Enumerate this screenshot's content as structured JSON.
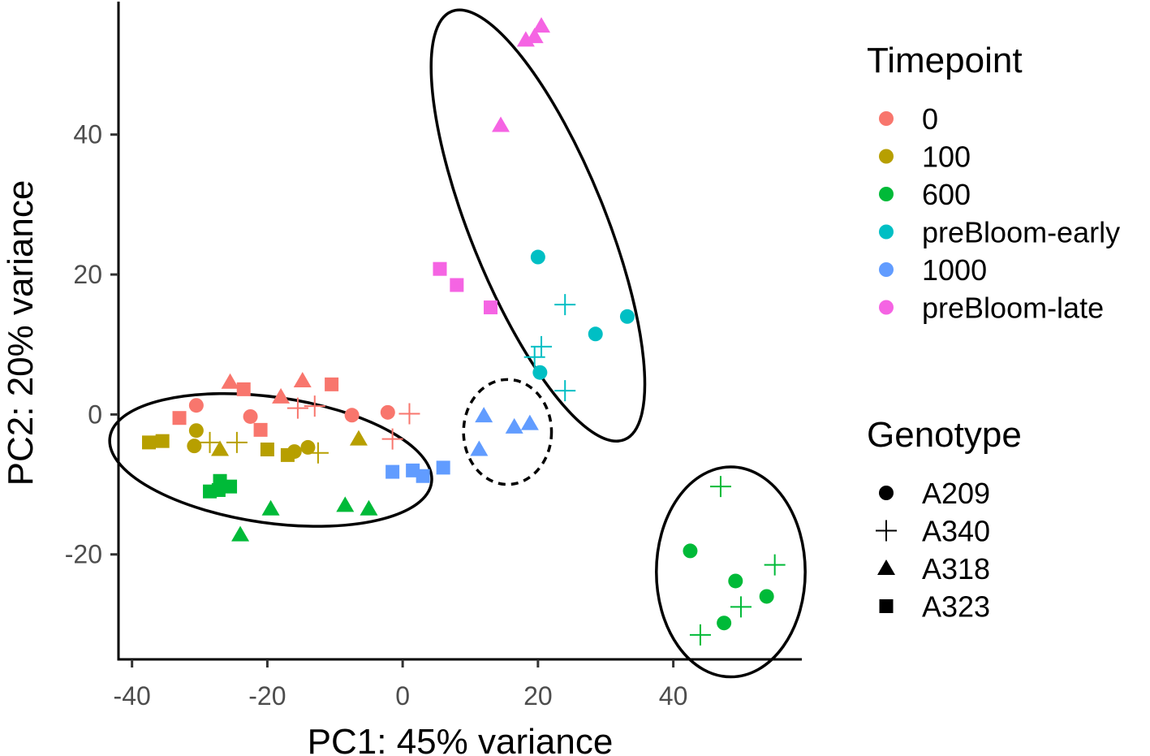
{
  "chart_data": {
    "type": "scatter",
    "title": "",
    "xlabel": "PC1: 45% variance",
    "ylabel": "PC2: 20% variance",
    "xlim": [
      -42,
      59
    ],
    "ylim": [
      -35,
      59
    ],
    "xticks": [
      -40,
      -20,
      0,
      20,
      40
    ],
    "yticks": [
      -20,
      0,
      20,
      40
    ],
    "timepoint_legend": {
      "title": "Timepoint",
      "entries": [
        {
          "label": "0",
          "color": "#F8766D"
        },
        {
          "label": "100",
          "color": "#B79F00"
        },
        {
          "label": "600",
          "color": "#00BA38"
        },
        {
          "label": "preBloom-early",
          "color": "#00BFC4"
        },
        {
          "label": "1000",
          "color": "#619CFF"
        },
        {
          "label": "preBloom-late",
          "color": "#F564E3"
        }
      ]
    },
    "genotype_legend": {
      "title": "Genotype",
      "entries": [
        {
          "label": "A209",
          "shape": "circle"
        },
        {
          "label": "A340",
          "shape": "plus"
        },
        {
          "label": "A318",
          "shape": "triangle"
        },
        {
          "label": "A323",
          "shape": "square"
        }
      ]
    },
    "points": [
      {
        "x": -30.5,
        "y": 1.3,
        "timepoint": "0",
        "genotype": "A209"
      },
      {
        "x": -22.5,
        "y": -0.3,
        "timepoint": "0",
        "genotype": "A209"
      },
      {
        "x": -7.5,
        "y": -0.1,
        "timepoint": "0",
        "genotype": "A209"
      },
      {
        "x": -2.2,
        "y": 0.3,
        "timepoint": "0",
        "genotype": "A209"
      },
      {
        "x": -15.5,
        "y": 0.9,
        "timepoint": "0",
        "genotype": "A340"
      },
      {
        "x": -13.0,
        "y": 1.2,
        "timepoint": "0",
        "genotype": "A340"
      },
      {
        "x": 1.0,
        "y": 0.1,
        "timepoint": "0",
        "genotype": "A340"
      },
      {
        "x": -1.5,
        "y": -3.5,
        "timepoint": "0",
        "genotype": "A340"
      },
      {
        "x": -25.5,
        "y": 4.6,
        "timepoint": "0",
        "genotype": "A318"
      },
      {
        "x": -18.0,
        "y": 2.5,
        "timepoint": "0",
        "genotype": "A318"
      },
      {
        "x": -14.8,
        "y": 4.8,
        "timepoint": "0",
        "genotype": "A318"
      },
      {
        "x": -33.0,
        "y": -0.5,
        "timepoint": "0",
        "genotype": "A323"
      },
      {
        "x": -23.5,
        "y": 3.6,
        "timepoint": "0",
        "genotype": "A323"
      },
      {
        "x": -10.5,
        "y": 4.3,
        "timepoint": "0",
        "genotype": "A323"
      },
      {
        "x": -21.0,
        "y": -2.2,
        "timepoint": "0",
        "genotype": "A323"
      },
      {
        "x": -30.5,
        "y": -2.3,
        "timepoint": "100",
        "genotype": "A209"
      },
      {
        "x": -30.8,
        "y": -4.5,
        "timepoint": "100",
        "genotype": "A209"
      },
      {
        "x": -16.0,
        "y": -5.3,
        "timepoint": "100",
        "genotype": "A209"
      },
      {
        "x": -14.0,
        "y": -4.7,
        "timepoint": "100",
        "genotype": "A209"
      },
      {
        "x": -28.5,
        "y": -4.0,
        "timepoint": "100",
        "genotype": "A340"
      },
      {
        "x": -24.5,
        "y": -4.0,
        "timepoint": "100",
        "genotype": "A340"
      },
      {
        "x": -12.5,
        "y": -5.5,
        "timepoint": "100",
        "genotype": "A340"
      },
      {
        "x": -27.0,
        "y": -5.0,
        "timepoint": "100",
        "genotype": "A318"
      },
      {
        "x": -6.5,
        "y": -3.5,
        "timepoint": "100",
        "genotype": "A318"
      },
      {
        "x": -37.5,
        "y": -4.0,
        "timepoint": "100",
        "genotype": "A323"
      },
      {
        "x": -35.5,
        "y": -3.8,
        "timepoint": "100",
        "genotype": "A323"
      },
      {
        "x": -20.0,
        "y": -5.0,
        "timepoint": "100",
        "genotype": "A323"
      },
      {
        "x": -17.0,
        "y": -5.8,
        "timepoint": "100",
        "genotype": "A323"
      },
      {
        "x": 42.5,
        "y": -19.5,
        "timepoint": "600",
        "genotype": "A209"
      },
      {
        "x": 49.2,
        "y": -23.8,
        "timepoint": "600",
        "genotype": "A209"
      },
      {
        "x": 47.5,
        "y": -29.8,
        "timepoint": "600",
        "genotype": "A209"
      },
      {
        "x": 53.8,
        "y": -26.0,
        "timepoint": "600",
        "genotype": "A209"
      },
      {
        "x": 47.0,
        "y": -10.3,
        "timepoint": "600",
        "genotype": "A340"
      },
      {
        "x": 55.0,
        "y": -21.5,
        "timepoint": "600",
        "genotype": "A340"
      },
      {
        "x": 50.0,
        "y": -27.5,
        "timepoint": "600",
        "genotype": "A340"
      },
      {
        "x": 44.0,
        "y": -31.5,
        "timepoint": "600",
        "genotype": "A340"
      },
      {
        "x": -24.0,
        "y": -17.2,
        "timepoint": "600",
        "genotype": "A318"
      },
      {
        "x": -19.5,
        "y": -13.5,
        "timepoint": "600",
        "genotype": "A318"
      },
      {
        "x": -8.5,
        "y": -13.0,
        "timepoint": "600",
        "genotype": "A318"
      },
      {
        "x": -5.0,
        "y": -13.5,
        "timepoint": "600",
        "genotype": "A318"
      },
      {
        "x": -27.0,
        "y": -9.5,
        "timepoint": "600",
        "genotype": "A323"
      },
      {
        "x": -25.5,
        "y": -10.3,
        "timepoint": "600",
        "genotype": "A323"
      },
      {
        "x": -28.5,
        "y": -11.0,
        "timepoint": "600",
        "genotype": "A323"
      },
      {
        "x": -27.2,
        "y": -10.8,
        "timepoint": "600",
        "genotype": "A323"
      },
      {
        "x": 20.0,
        "y": 22.5,
        "timepoint": "preBloom-early",
        "genotype": "A209"
      },
      {
        "x": 28.5,
        "y": 11.5,
        "timepoint": "preBloom-early",
        "genotype": "A209"
      },
      {
        "x": 33.2,
        "y": 14.0,
        "timepoint": "preBloom-early",
        "genotype": "A209"
      },
      {
        "x": 20.3,
        "y": 6.0,
        "timepoint": "preBloom-early",
        "genotype": "A209"
      },
      {
        "x": 24.0,
        "y": 15.7,
        "timepoint": "preBloom-early",
        "genotype": "A340"
      },
      {
        "x": 20.5,
        "y": 9.7,
        "timepoint": "preBloom-early",
        "genotype": "A340"
      },
      {
        "x": 19.5,
        "y": 8.2,
        "timepoint": "preBloom-early",
        "genotype": "A340"
      },
      {
        "x": 24.0,
        "y": 3.4,
        "timepoint": "preBloom-early",
        "genotype": "A340"
      },
      {
        "x": 12.0,
        "y": -0.2,
        "timepoint": "1000",
        "genotype": "A318"
      },
      {
        "x": 16.5,
        "y": -1.8,
        "timepoint": "1000",
        "genotype": "A318"
      },
      {
        "x": 18.8,
        "y": -1.3,
        "timepoint": "1000",
        "genotype": "A318"
      },
      {
        "x": 11.3,
        "y": -5.0,
        "timepoint": "1000",
        "genotype": "A318"
      },
      {
        "x": -1.5,
        "y": -8.2,
        "timepoint": "1000",
        "genotype": "A323"
      },
      {
        "x": 1.5,
        "y": -8.0,
        "timepoint": "1000",
        "genotype": "A323"
      },
      {
        "x": 3.0,
        "y": -8.8,
        "timepoint": "1000",
        "genotype": "A323"
      },
      {
        "x": 6.0,
        "y": -7.6,
        "timepoint": "1000",
        "genotype": "A323"
      },
      {
        "x": 18.2,
        "y": 53.5,
        "timepoint": "preBloom-late",
        "genotype": "A318"
      },
      {
        "x": 19.5,
        "y": 54.0,
        "timepoint": "preBloom-late",
        "genotype": "A318"
      },
      {
        "x": 20.5,
        "y": 55.5,
        "timepoint": "preBloom-late",
        "genotype": "A318"
      },
      {
        "x": 14.5,
        "y": 41.3,
        "timepoint": "preBloom-late",
        "genotype": "A318"
      },
      {
        "x": 5.5,
        "y": 20.8,
        "timepoint": "preBloom-late",
        "genotype": "A323"
      },
      {
        "x": 8.0,
        "y": 18.5,
        "timepoint": "preBloom-late",
        "genotype": "A323"
      },
      {
        "x": 13.0,
        "y": 15.3,
        "timepoint": "preBloom-late",
        "genotype": "A323"
      }
    ],
    "ellipses": [
      {
        "name": "left-cluster",
        "cx": -19.5,
        "cy": -6.5,
        "rx": 24.0,
        "ry": 9.0,
        "angle": 8,
        "dashed": false
      },
      {
        "name": "top-cluster",
        "cx": 20.0,
        "cy": 27.0,
        "rx": 10.0,
        "ry": 33.0,
        "angle": -22,
        "dashed": false
      },
      {
        "name": "small-dashed-cluster",
        "cx": 15.5,
        "cy": -2.5,
        "rx": 6.5,
        "ry": 7.5,
        "angle": 0,
        "dashed": true
      },
      {
        "name": "lower-right-cluster",
        "cx": 48.5,
        "cy": -22.5,
        "rx": 11.0,
        "ry": 15.0,
        "angle": 0,
        "dashed": false
      }
    ]
  }
}
